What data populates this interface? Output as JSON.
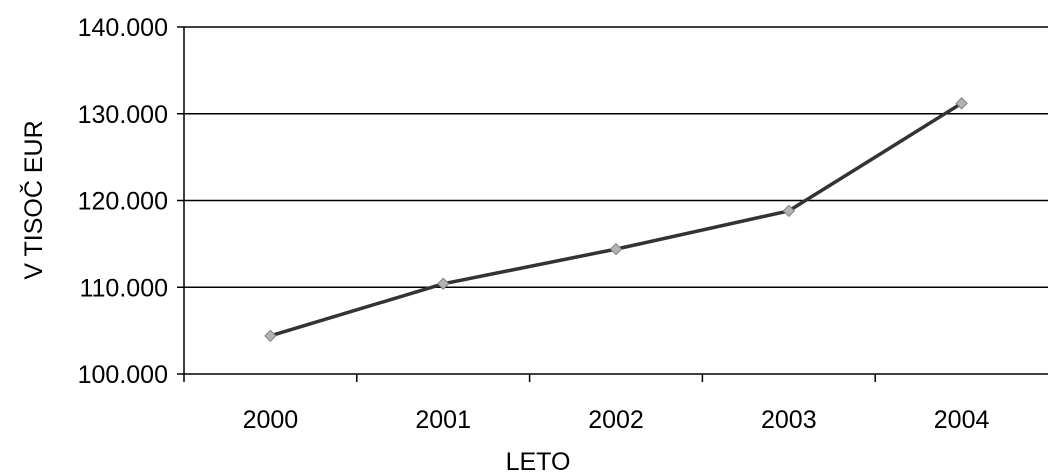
{
  "chart_data": {
    "type": "line",
    "title": "",
    "xlabel": "LETO",
    "ylabel": "V TISOČ EUR",
    "categories": [
      "2000",
      "2001",
      "2002",
      "2003",
      "2004"
    ],
    "series": [
      {
        "values": [
          104400,
          110400,
          114400,
          118800,
          131200
        ]
      }
    ],
    "ylim": [
      100000,
      140000
    ],
    "yticks": [
      100000,
      110000,
      120000,
      130000,
      140000
    ],
    "ytick_labels": [
      "100.000",
      "110.000",
      "120.000",
      "130.000",
      "140.000"
    ],
    "grid": "horizontal",
    "legend": "none",
    "colors": {
      "line": "#333333",
      "marker": "#b3b3b3",
      "marker_edge": "#808080",
      "grid": "#000000"
    }
  }
}
